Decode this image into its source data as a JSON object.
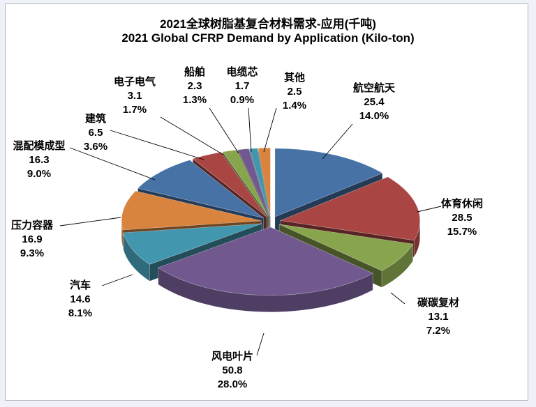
{
  "chart_data": {
    "type": "pie",
    "style": "3d-exploded",
    "title": "2021全球树脂基复合材料需求-应用(千吨)",
    "subtitle": "2021 Global CFRP Demand by Application (Kilo-ton)",
    "unit": "千吨",
    "slices": [
      {
        "label": "航空航天",
        "value": 25.4,
        "percent": "14.0%",
        "color": "#4f81bd"
      },
      {
        "label": "体育休闲",
        "value": 28.5,
        "percent": "15.7%",
        "color": "#c0504d"
      },
      {
        "label": "碳碳复材",
        "value": 13.1,
        "percent": "7.2%",
        "color": "#9bbb59"
      },
      {
        "label": "风电叶片",
        "value": 50.8,
        "percent": "28.0%",
        "color": "#8064a2"
      },
      {
        "label": "汽车",
        "value": 14.6,
        "percent": "8.1%",
        "color": "#4bacc6"
      },
      {
        "label": "压力容器",
        "value": 16.9,
        "percent": "9.3%",
        "color": "#f79646"
      },
      {
        "label": "混配模成型",
        "value": 16.3,
        "percent": "9.0%",
        "color": "#4f81bd"
      },
      {
        "label": "建筑",
        "value": 6.5,
        "percent": "3.6%",
        "color": "#c0504d"
      },
      {
        "label": "电子电气",
        "value": 3.1,
        "percent": "1.7%",
        "color": "#9bbb59"
      },
      {
        "label": "船舶",
        "value": 2.3,
        "percent": "1.3%",
        "color": "#8064a2"
      },
      {
        "label": "电缆芯",
        "value": 1.7,
        "percent": "0.9%",
        "color": "#4bacc6"
      },
      {
        "label": "其他",
        "value": 2.5,
        "percent": "1.4%",
        "color": "#f79646"
      }
    ]
  }
}
